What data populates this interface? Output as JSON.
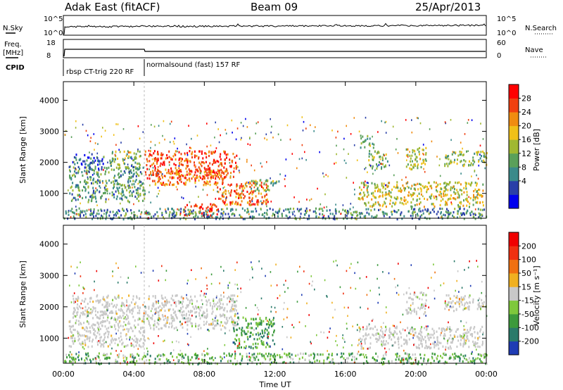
{
  "header": {
    "station": "Adak East (fitACF)",
    "beam": "Beam 09",
    "date": "25/Apr/2013"
  },
  "top_panels": {
    "noise": {
      "left_label": "N.Sky",
      "right_label": "N.Search",
      "left_ticks": [
        "10^5",
        "10^0"
      ],
      "right_ticks": [
        "10^5",
        "10^0"
      ]
    },
    "freq": {
      "left_label_1": "Freq.",
      "left_label_2": "[MHz]",
      "right_label": "Nave",
      "left_ticks": [
        "18",
        "8"
      ],
      "right_ticks": [
        "60",
        "0"
      ]
    },
    "cpid": {
      "label": "CPID",
      "segments": [
        {
          "start_hr": 0,
          "end_hr": 4.6,
          "text": "rbsp CT-trig 220 RF"
        },
        {
          "start_hr": 4.6,
          "end_hr": 24,
          "text": "normalsound (fast) 157 RF"
        }
      ]
    }
  },
  "chart_data": [
    {
      "type": "heatmap",
      "name": "power",
      "ylabel": "Slant Range [km]",
      "xlabel": "",
      "xlim": [
        0,
        24
      ],
      "ylim": [
        200,
        4600
      ],
      "yticks": [
        1000,
        2000,
        3000,
        4000
      ],
      "colorbar": {
        "label": "Power [dB]",
        "ticks": [
          "28",
          "24",
          "20",
          "16",
          "12",
          "8",
          "4"
        ],
        "colors": [
          "#0000ee",
          "#2a3fa8",
          "#3a8a8a",
          "#5aa05a",
          "#a0b832",
          "#f0c018",
          "#f08c10",
          "#f04010",
          "#ff0000"
        ]
      },
      "regions": [
        {
          "t0": 0.3,
          "t1": 4.6,
          "r0": 750,
          "r1": 1900,
          "level": 0.35
        },
        {
          "t0": 0.5,
          "t1": 2.3,
          "r0": 1800,
          "r1": 2300,
          "level": 0.2
        },
        {
          "t0": 2.6,
          "t1": 4.4,
          "r0": 1800,
          "r1": 2400,
          "level": 0.45
        },
        {
          "t0": 4.6,
          "t1": 9.8,
          "r0": 1500,
          "r1": 2400,
          "level": 0.85
        },
        {
          "t0": 5.0,
          "t1": 9.2,
          "r0": 1300,
          "r1": 1800,
          "level": 0.75
        },
        {
          "t0": 8.7,
          "t1": 11.6,
          "r0": 650,
          "r1": 1400,
          "level": 0.8
        },
        {
          "t0": 6.8,
          "t1": 8.8,
          "r0": 300,
          "r1": 700,
          "level": 0.9
        },
        {
          "t0": 10.6,
          "t1": 12.2,
          "r0": 1100,
          "r1": 1500,
          "level": 0.4
        },
        {
          "t0": 16.7,
          "t1": 23.8,
          "r0": 600,
          "r1": 1400,
          "level": 0.55
        },
        {
          "t0": 16.8,
          "t1": 17.6,
          "r0": 2500,
          "r1": 2900,
          "level": 0.4
        },
        {
          "t0": 17.3,
          "t1": 18.4,
          "r0": 1800,
          "r1": 2400,
          "level": 0.45
        },
        {
          "t0": 19.4,
          "t1": 20.6,
          "r0": 1800,
          "r1": 2500,
          "level": 0.5
        },
        {
          "t0": 21.6,
          "t1": 24.0,
          "r0": 1900,
          "r1": 2400,
          "level": 0.45
        },
        {
          "t0": 0.0,
          "t1": 24.0,
          "r0": 200,
          "r1": 550,
          "level": 0.3
        }
      ]
    },
    {
      "type": "heatmap",
      "name": "velocity",
      "ylabel": "Slant Range [km]",
      "xlabel": "Time UT",
      "xlim": [
        0,
        24
      ],
      "ylim": [
        200,
        4600
      ],
      "yticks": [
        1000,
        2000,
        3000,
        4000
      ],
      "xticks": [
        "00:00",
        "04:00",
        "08:00",
        "12:00",
        "16:00",
        "20:00",
        "00:00"
      ],
      "colorbar": {
        "label": "Velocity [m s⁻¹]",
        "ticks": [
          "200",
          "100",
          "50",
          "15",
          "-15",
          "-50",
          "-100",
          "-200"
        ],
        "colors": [
          "#1f3cb4",
          "#2a7a6a",
          "#3c9a3c",
          "#7ec83c",
          "#c8c8c8",
          "#f0b020",
          "#f07010",
          "#f03010",
          "#f00000"
        ]
      },
      "regions": [
        {
          "t0": 0.3,
          "t1": 4.6,
          "r0": 750,
          "r1": 1900,
          "level": 0.5
        },
        {
          "t0": 0.5,
          "t1": 4.4,
          "r0": 1800,
          "r1": 2400,
          "level": 0.5
        },
        {
          "t0": 4.6,
          "t1": 9.8,
          "r0": 1300,
          "r1": 2400,
          "level": 0.5
        },
        {
          "t0": 9.6,
          "t1": 12.0,
          "r0": 700,
          "r1": 1700,
          "level": 0.28
        },
        {
          "t0": 16.7,
          "t1": 23.8,
          "r0": 700,
          "r1": 1400,
          "level": 0.5
        },
        {
          "t0": 19.4,
          "t1": 20.6,
          "r0": 1800,
          "r1": 2500,
          "level": 0.5
        },
        {
          "t0": 21.6,
          "t1": 24.0,
          "r0": 1900,
          "r1": 2400,
          "level": 0.5
        },
        {
          "t0": 0.0,
          "t1": 24.0,
          "r0": 200,
          "r1": 550,
          "level": 0.35
        }
      ]
    }
  ]
}
